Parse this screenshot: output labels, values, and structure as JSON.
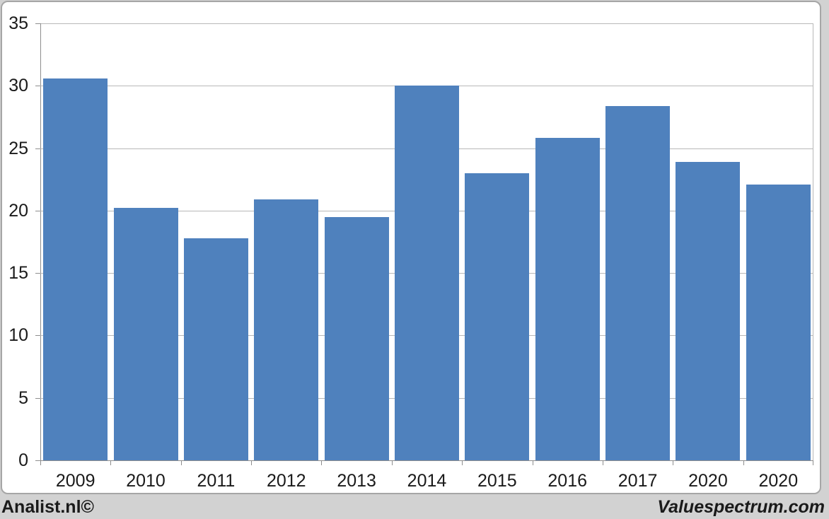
{
  "chart_data": {
    "type": "bar",
    "categories": [
      "2009",
      "2010",
      "2011",
      "2012",
      "2013",
      "2014",
      "2015",
      "2016",
      "2017",
      "2020",
      "2020"
    ],
    "values": [
      30.6,
      20.2,
      17.8,
      20.9,
      19.5,
      30.0,
      23.0,
      25.8,
      28.4,
      23.9,
      22.1
    ],
    "title": "",
    "xlabel": "",
    "ylabel": "",
    "ylim": [
      0,
      35
    ],
    "yticks": [
      0,
      5,
      10,
      15,
      20,
      25,
      30,
      35
    ],
    "grid": true,
    "legend": "none"
  },
  "colors": {
    "bar": "#4f81bd",
    "gridline": "#b8b8b8",
    "axis": "#8e8e8e",
    "panel_border": "#a6a6a6",
    "panel_background": "#ffffff",
    "page_background": "#d2d2d2",
    "text": "#1a1a1a"
  },
  "footer": {
    "left_brand": "Analist.nl©",
    "right_brand": "Valuespectrum.com"
  }
}
